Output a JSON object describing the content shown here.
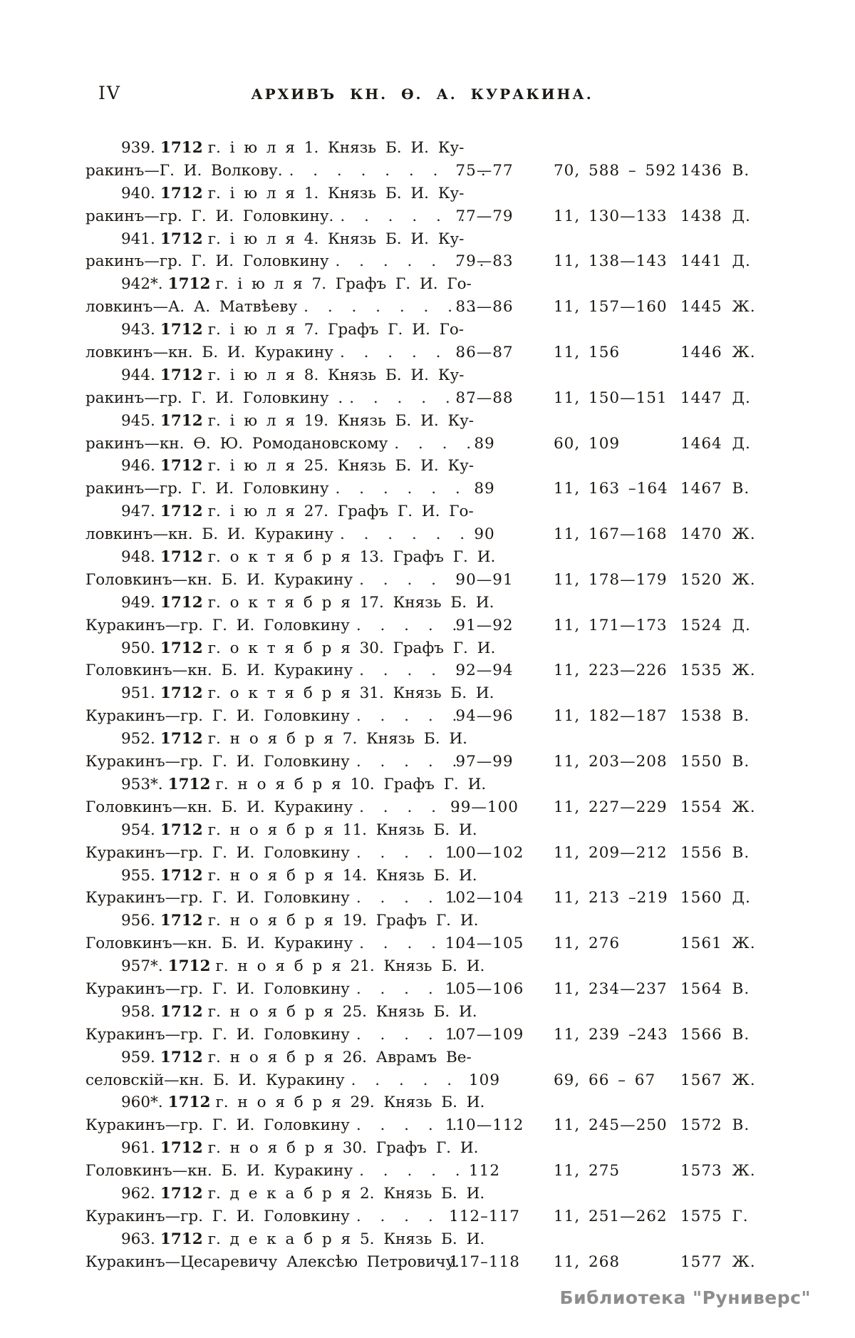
{
  "header": {
    "page_number": "IV",
    "running_title": "АРХИВЪ КН. Ѳ. А. КУРАКИНА."
  },
  "watermark": {
    "text": "Библиотека \"Руниверс\""
  },
  "colors": {
    "ink": "#1b1713",
    "paper": "#ffffff",
    "watermark_gray": "#8d8d8d"
  },
  "entries": [
    {
      "num": "939.",
      "year": "1712",
      "date": "г. і ю л я 1. Князь  Б. И. Ку-",
      "cont": "ракинъ—Г. И. Волкову.",
      "dots": ". . . . . . . . .",
      "pages": "75—77",
      "ref": "70, 588 – 592",
      "catalog": "1436 В."
    },
    {
      "num": "940.",
      "year": "1712",
      "date": "г. і ю л я 1. Князь Б. И. Ку-",
      "cont": "ракинъ—гр. Г. И. Головкину.",
      "dots": ". . . . . .",
      "pages": "77—79",
      "ref": "11, 130—133",
      "catalog": "1438 Д."
    },
    {
      "num": "941.",
      "year": "1712",
      "date": "г. і ю л я 4. Князь  Б. И. Ку-",
      "cont": "ракинъ—гр. Г. И. Головкину",
      "dots": ". . . . . . .",
      "pages": "79—83",
      "ref": "11, 138—143",
      "catalog": "1441 Д."
    },
    {
      "num": "942*.",
      "year": "1712",
      "date": "г. і ю л я 7. Графъ Г. И. Го-",
      "cont": "ловкинъ—А. А. Матвѣеву",
      "dots": ". . . . . . . .",
      "pages": "83—86",
      "ref": "11, 157—160",
      "catalog": "1445 Ж."
    },
    {
      "num": "943.",
      "year": "1712",
      "date": "г. і ю л я 7. Графъ Г. И. Го-",
      "cont": "ловкинъ—кн. Б. И. Куракину",
      "dots": ". . . . . .",
      "pages": "86—87",
      "ref": "11, 156",
      "catalog": "1446 Ж."
    },
    {
      "num": "944.",
      "year": "1712",
      "date": "г. і ю л я 8. Князь Б. И. Ку-",
      "cont": "ракинъ—гр. Г. И. Головкину .",
      "dots": ". . . . . .",
      "pages": "87—88",
      "ref": "11, 150—151",
      "catalog": "1447 Д."
    },
    {
      "num": "945.",
      "year": "1712",
      "date": "г. і ю л я 19. Князь Б. И. Ку-",
      "cont": "ракинъ—кн. Ѳ. Ю. Ромодановскому",
      "dots": ". . . .",
      "pages": "89",
      "ref": "60, 109",
      "catalog": "1464 Д."
    },
    {
      "num": "946.",
      "year": "1712",
      "date": "г. і ю л я 25. Князь Б. И. Ку-",
      "cont": "ракинъ—гр. Г. И. Головкину",
      "dots": ". . . . . .",
      "pages": "89",
      "ref": "11, 163 –164",
      "catalog": "1467 В."
    },
    {
      "num": "947.",
      "year": "1712",
      "date": "г. і ю л я 27. Графъ Г. И. Го-",
      "cont": "ловкинъ—кн. Б. И. Куракину",
      "dots": ". . . . . .",
      "pages": "90",
      "ref": "11, 167—168",
      "catalog": "1470 Ж."
    },
    {
      "num": "948.",
      "year": "1712",
      "date": "г. о к т я б р я 13. Графъ Г. И.",
      "cont": "Головкинъ—кн. Б. И. Куракину",
      "dots": ". . . . .",
      "pages": "90—91",
      "ref": "11, 178—179",
      "catalog": "1520 Ж."
    },
    {
      "num": "949.",
      "year": "1712",
      "date": "г. о к т я б р я 17. Князь Б. И.",
      "cont": "Куракинъ—гр. Г. И. Головкину",
      "dots": ". . . . .",
      "pages": "91—92",
      "ref": "11, 171—173",
      "catalog": "1524 Д."
    },
    {
      "num": "950.",
      "year": "1712",
      "date": "г. о к т я б р я 30. Графъ Г. И.",
      "cont": "Головкинъ—кн. Б. И. Куракину",
      "dots": ". . . . .",
      "pages": "92—94",
      "ref": "11, 223—226",
      "catalog": "1535 Ж."
    },
    {
      "num": "951.",
      "year": "1712",
      "date": "г. о к т я б р я 31. Князь Б. И.",
      "cont": "Куракинъ—гр. Г. И. Головкину",
      "dots": ". . . . .",
      "pages": "94—96",
      "ref": "11, 182—187",
      "catalog": "1538 В."
    },
    {
      "num": "952.",
      "year": "1712",
      "date": "г. н о я б р я 7. Князь Б. И.",
      "cont": "Куракинъ—гр. Г. И. Головкину",
      "dots": ". . . . .",
      "pages": "97—99",
      "ref": "11, 203—208",
      "catalog": "1550 В."
    },
    {
      "num": "953*.",
      "year": "1712",
      "date": "г. н о я б р я 10. Графъ Г. И.",
      "cont": "Головкинъ—кн. Б. И. Куракину",
      "dots": ". . . . .",
      "pages": "99—100",
      "ref": "11, 227—229",
      "catalog": "1554 Ж."
    },
    {
      "num": "954.",
      "year": "1712",
      "date": "г. н о я б р я 11. Князь Б. И.",
      "cont": "Куракинъ—гр. Г. И. Головкину",
      "dots": ". . . . .",
      "pages": "100—102",
      "ref": "11, 209—212",
      "catalog": "1556 В."
    },
    {
      "num": "955.",
      "year": "1712",
      "date": "г. н о я б р я 14. Князь Б. И.",
      "cont": "Куракинъ—гр. Г. И. Головкину",
      "dots": ". . . . .",
      "pages": "102—104",
      "ref": "11, 213 –219",
      "catalog": "1560 Д."
    },
    {
      "num": "956.",
      "year": "1712",
      "date": "г. н о я б р я 19. Графъ Г. И.",
      "cont": "Головкинъ—кн. Б. И. Куракину",
      "dots": ". . . . .",
      "pages": "104—105",
      "ref": "11, 276",
      "catalog": "1561 Ж."
    },
    {
      "num": "957*.",
      "year": "1712",
      "date": "г. н о я б р я 21. Князь Б. И.",
      "cont": "Куракинъ—гр. Г. И. Головкину",
      "dots": ". . . . .",
      "pages": "105—106",
      "ref": "11, 234—237",
      "catalog": "1564 В."
    },
    {
      "num": "958.",
      "year": "1712",
      "date": "г. н о я б р я 25. Князь Б. И.",
      "cont": "Куракинъ—гр. Г. И. Головкину",
      "dots": ". . . . .",
      "pages": "107—109",
      "ref": "11, 239 –243",
      "catalog": "1566 В."
    },
    {
      "num": "959.",
      "year": "1712",
      "date": "г. н о я б р я 26.  Аврамъ Ве-",
      "cont": "селовскій—кн. Б. И. Куракину",
      "dots": ". . . . . .",
      "pages": "109",
      "ref": "69,  66 – 67",
      "catalog": "1567 Ж."
    },
    {
      "num": "960*.",
      "year": "1712",
      "date": "г. н о я б р я 29. Князь Б. И.",
      "cont": "Куракинъ—гр. Г. И. Головкину",
      "dots": ". . . . .",
      "pages": "110—112",
      "ref": "11, 245—250",
      "catalog": "1572 В."
    },
    {
      "num": "961.",
      "year": "1712",
      "date": "г. н о я б р я 30. Графъ Г. И.",
      "cont": "Головкинъ—кн. Б. И. Куракину",
      "dots": ". . . . .",
      "pages": "112",
      "ref": "11, 275",
      "catalog": "1573 Ж."
    },
    {
      "num": "962.",
      "year": "1712",
      "date": "г. д е к а б р я 2. Князь Б. И.",
      "cont": "Куракинъ—гр. Г. И. Головкину",
      "dots": ". . . . .",
      "pages": "112–117",
      "ref": "11, 251—262",
      "catalog": "1575 Г."
    },
    {
      "num": "963.",
      "year": "1712",
      "date": "г. д е к а б р я 5. Князь Б. И.",
      "cont": "Куракинъ—Цесаревичу Алексѣю Петровичу.",
      "dots": "",
      "pages": "117–118",
      "ref": "11, 268",
      "catalog": "1577 Ж."
    }
  ]
}
